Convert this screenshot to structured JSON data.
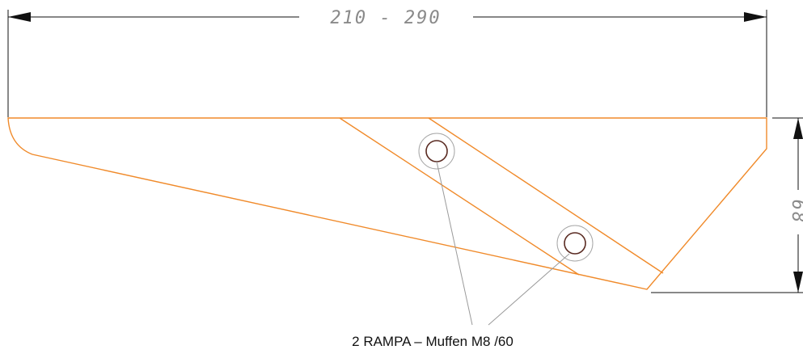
{
  "dimensions": {
    "width_label": "210 - 290",
    "height_label": "68"
  },
  "callout": {
    "text": "2 RAMPA – Muffen M8 /60"
  },
  "colors": {
    "part_outline": "#f08a2a",
    "dimension_line": "#111111",
    "dimension_text": "#8a8a8a",
    "hole_inner": "#5a2b22",
    "hole_outer": "#a6a6a6"
  }
}
